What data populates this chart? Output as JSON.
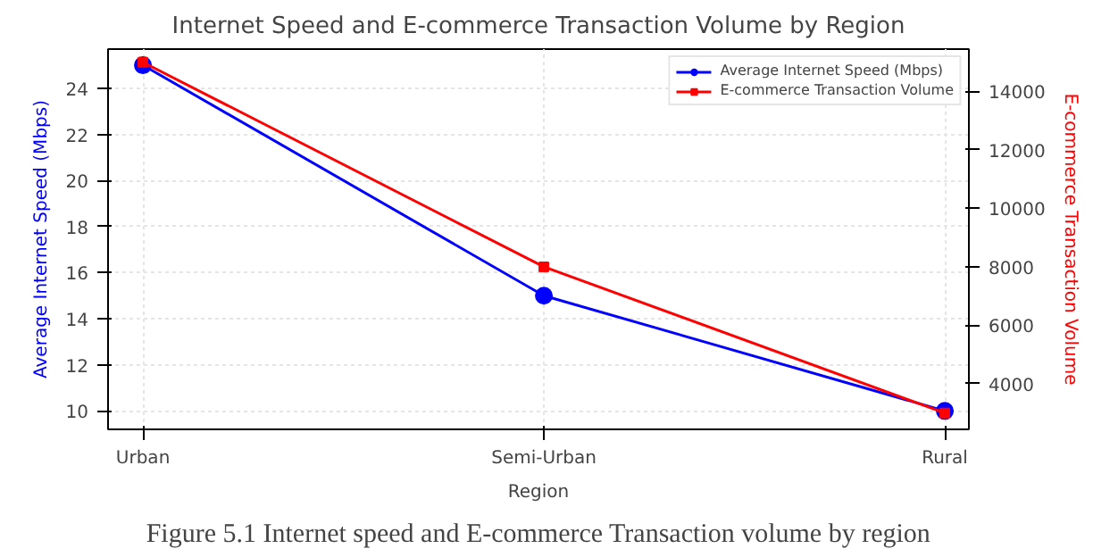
{
  "chart_data": {
    "type": "line",
    "title": "Internet Speed and E-commerce Transaction Volume by Region",
    "xlabel": "Region",
    "ylabel": "Average Internet Speed (Mbps)",
    "y2label": "E-commerce Transaction Volume",
    "categories": [
      "Urban",
      "Semi-Urban",
      "Rural"
    ],
    "series": [
      {
        "name": "Average Internet Speed (Mbps)",
        "color": "#0000ff",
        "values": [
          25,
          15,
          10
        ],
        "marker": "circle"
      },
      {
        "name": "E-commerce Transaction Volume",
        "color": "#ff0000",
        "values": [
          15000,
          8000,
          3000
        ],
        "marker": "square",
        "axis": "y2"
      }
    ],
    "ylim": [
      9.2,
      25.7
    ],
    "yticks": [
      10,
      12,
      14,
      16,
      18,
      20,
      22,
      24
    ],
    "y2lim": [
      2440,
      15450
    ],
    "y2ticks": [
      4000,
      6000,
      8000,
      10000,
      12000,
      14000
    ],
    "grid": true,
    "legend": "top right",
    "annotations": [
      "Figure 5.1 Internet speed and E-commerce Transaction volume by region"
    ]
  }
}
